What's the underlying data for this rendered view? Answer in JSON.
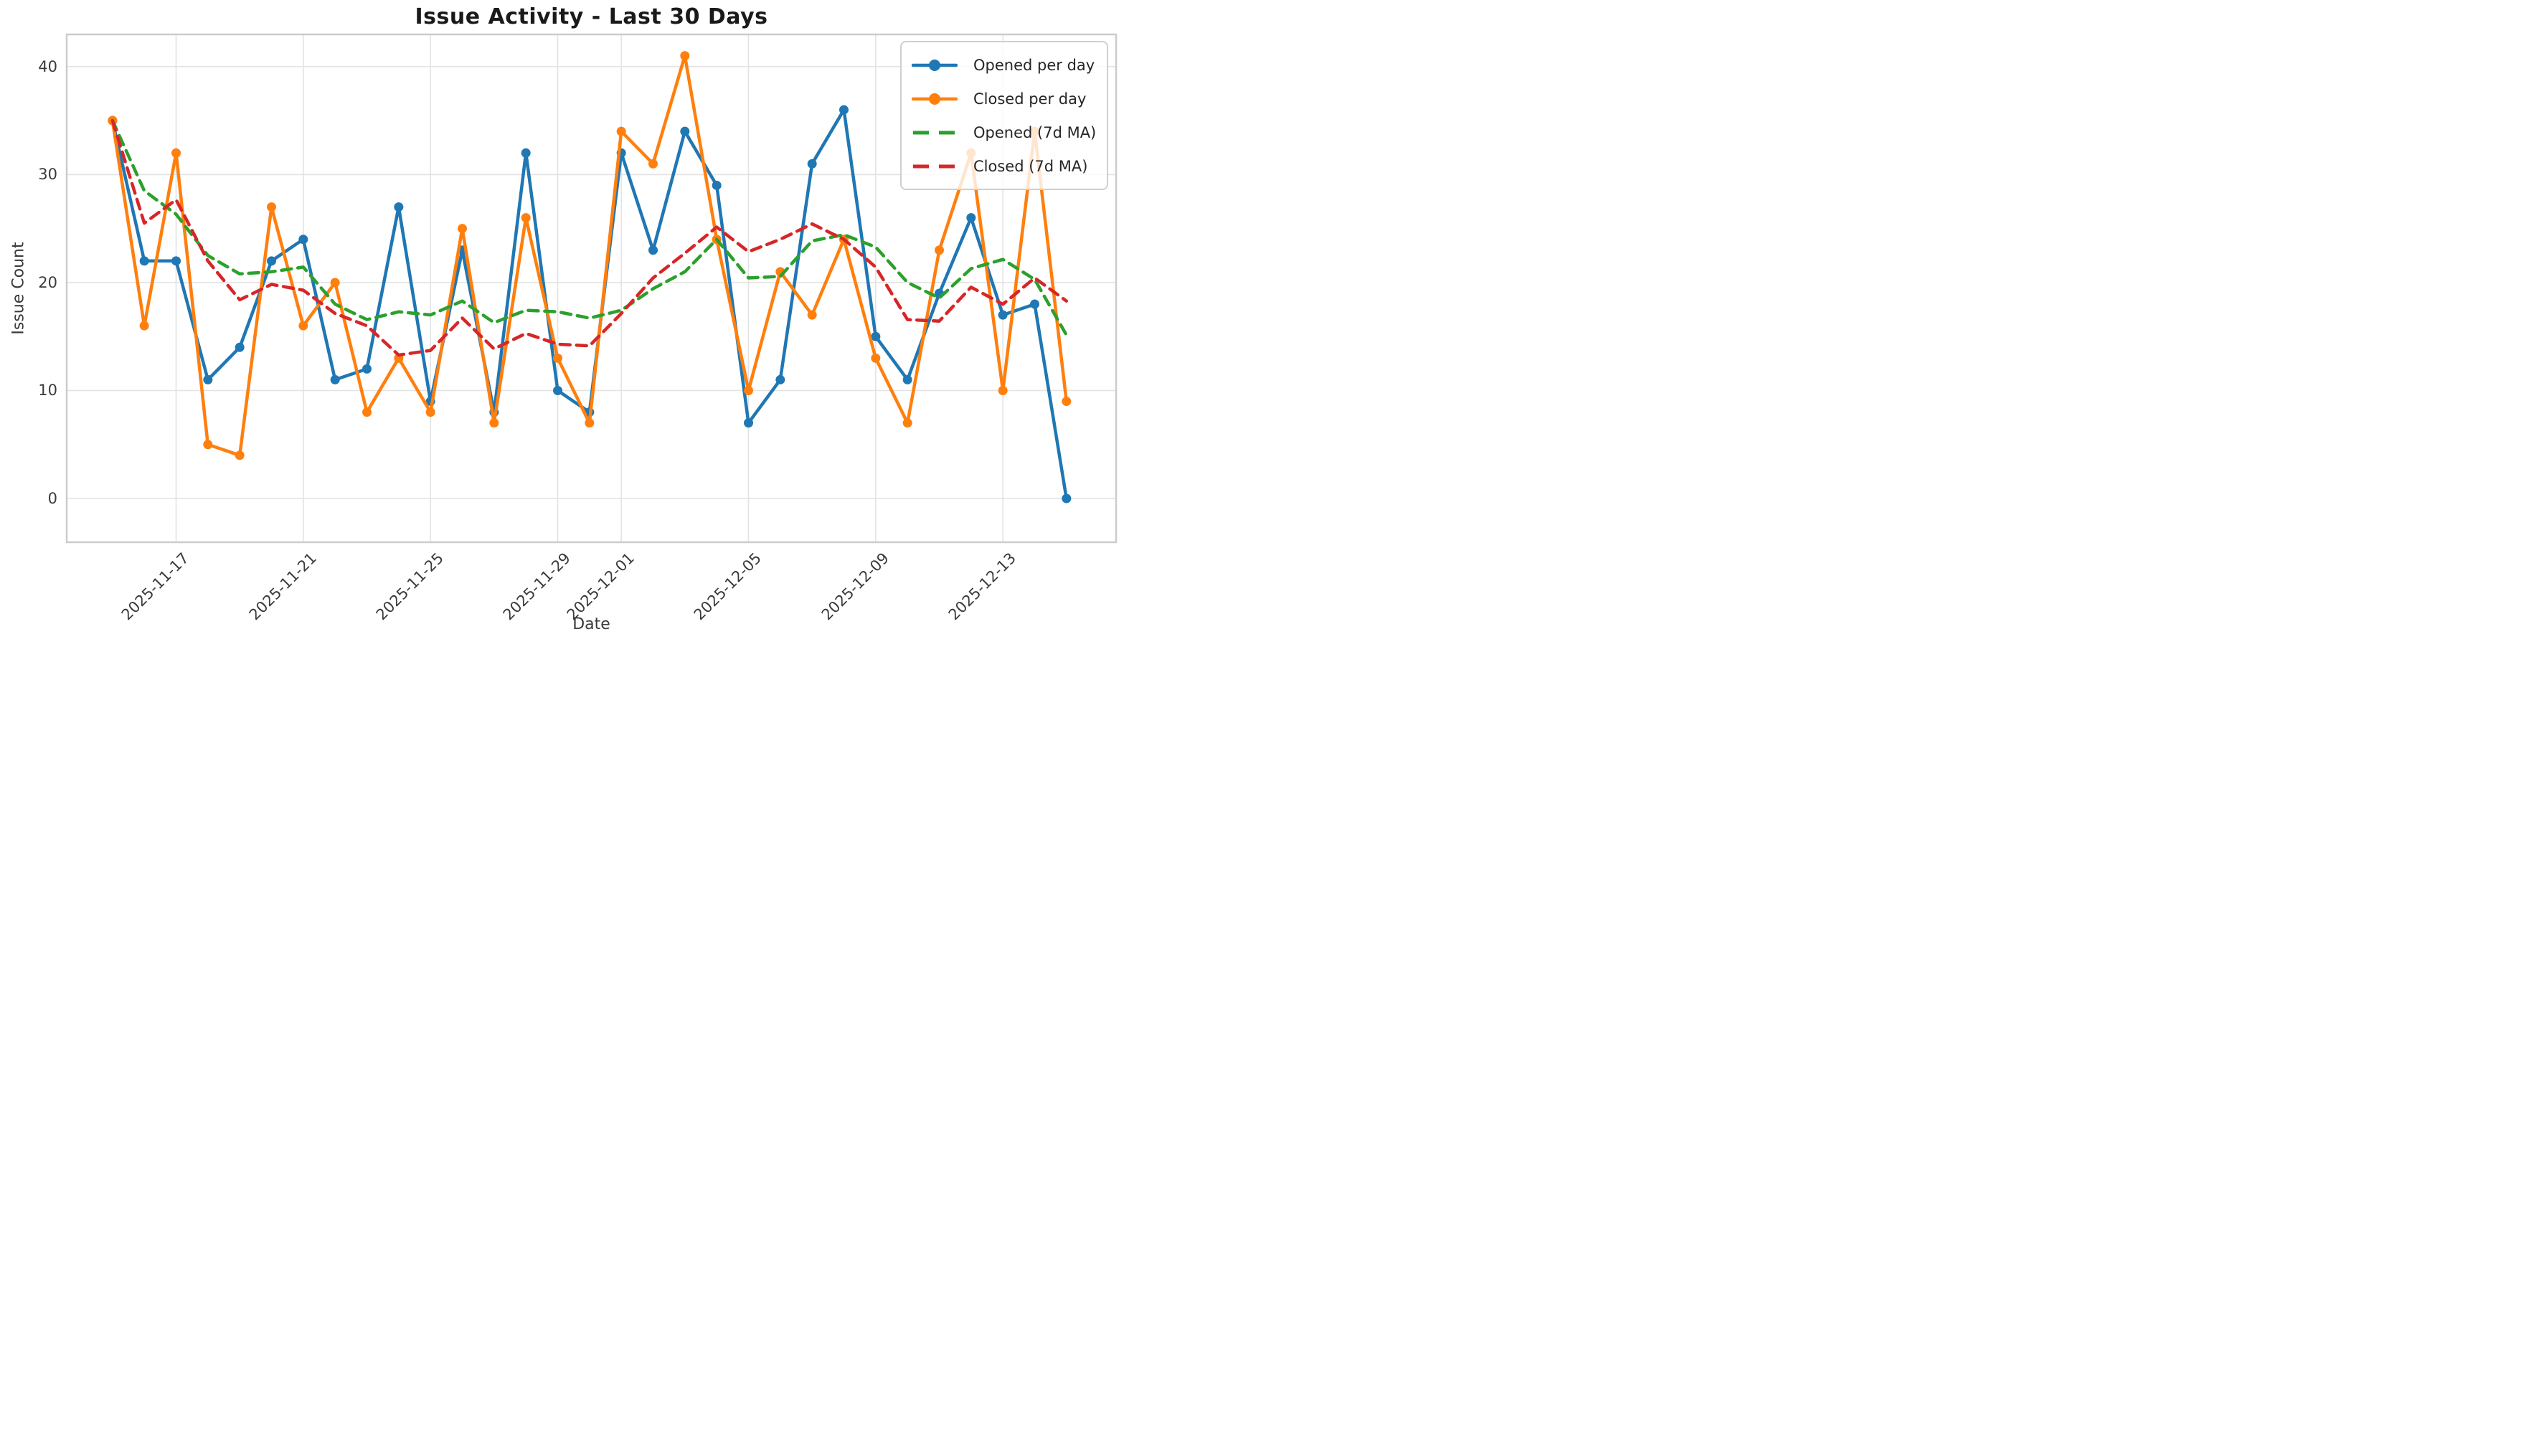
{
  "figure_title": "Issue Activity - Last 30 Days",
  "chart_data": {
    "type": "line",
    "title": "Issue Activity - Last 30 Days",
    "xlabel": "Date",
    "ylabel": "Issue Count",
    "grid": true,
    "legend_position": "upper right",
    "ylim": [
      -4.05,
      42.98
    ],
    "xlim_day_index": [
      -1.44,
      31.56
    ],
    "yticks": [
      0,
      10,
      20,
      30,
      40
    ],
    "xticks": [
      {
        "label": "2025-11-17",
        "day_index": 2
      },
      {
        "label": "2025-11-21",
        "day_index": 6
      },
      {
        "label": "2025-11-25",
        "day_index": 10
      },
      {
        "label": "2025-11-29",
        "day_index": 14
      },
      {
        "label": "2025-12-01",
        "day_index": 16
      },
      {
        "label": "2025-12-05",
        "day_index": 20
      },
      {
        "label": "2025-12-09",
        "day_index": 24
      },
      {
        "label": "2025-12-13",
        "day_index": 28
      }
    ],
    "dates": [
      "2025-11-15",
      "2025-11-16",
      "2025-11-17",
      "2025-11-18",
      "2025-11-19",
      "2025-11-20",
      "2025-11-21",
      "2025-11-22",
      "2025-11-23",
      "2025-11-24",
      "2025-11-25",
      "2025-11-26",
      "2025-11-27",
      "2025-11-28",
      "2025-11-29",
      "2025-11-30",
      "2025-12-01",
      "2025-12-02",
      "2025-12-03",
      "2025-12-04",
      "2025-12-05",
      "2025-12-06",
      "2025-12-07",
      "2025-12-08",
      "2025-12-09",
      "2025-12-10",
      "2025-12-11",
      "2025-12-12",
      "2025-12-13",
      "2025-12-14",
      "2025-12-15"
    ],
    "series": [
      {
        "name": "Opened per day",
        "color": "#1f77b4",
        "line_style": "solid",
        "marker": "circle",
        "values": [
          35,
          22,
          22,
          11,
          14,
          22,
          24,
          11,
          12,
          27,
          9,
          23,
          8,
          32,
          10,
          8,
          32,
          23,
          34,
          29,
          7,
          11,
          31,
          36,
          15,
          11,
          19,
          26,
          17,
          18,
          0
        ]
      },
      {
        "name": "Closed per day",
        "color": "#ff7f0e",
        "line_style": "solid",
        "marker": "circle",
        "values": [
          35,
          16,
          32,
          5,
          4,
          27,
          16,
          20,
          8,
          13,
          8,
          25,
          7,
          26,
          13,
          7,
          34,
          31,
          41,
          24,
          10,
          21,
          17,
          24,
          13,
          7,
          23,
          32,
          10,
          34,
          9
        ]
      },
      {
        "name": "Opened (7d MA)",
        "color": "#2ca02c",
        "line_style": "dashed",
        "marker": "none",
        "values": [
          35,
          28.5,
          26.33,
          22.5,
          20.8,
          21,
          21.43,
          18,
          16.57,
          17.29,
          17,
          18.29,
          16.29,
          17.43,
          17.29,
          16.71,
          17.43,
          19.43,
          21,
          24,
          20.43,
          20.57,
          23.86,
          24.43,
          23.29,
          20,
          18.57,
          21.29,
          22.14,
          20.29,
          15.14
        ]
      },
      {
        "name": "Closed (7d MA)",
        "color": "#d62728",
        "line_style": "dashed",
        "marker": "none",
        "values": [
          35,
          25.5,
          27.67,
          22,
          18.4,
          19.83,
          19.29,
          17.14,
          16,
          13.29,
          13.71,
          16.71,
          13.86,
          15.29,
          14.29,
          14.14,
          17.14,
          20.43,
          22.71,
          25.14,
          22.86,
          24,
          25.43,
          24,
          21.43,
          16.57,
          16.43,
          19.57,
          18,
          20.43,
          18.29
        ]
      }
    ],
    "style": {
      "grid_color": "#e3e3e3",
      "spine_color": "#cccccc",
      "tick_color": "#3a3a3a",
      "title_color": "#1a1a1a",
      "legend_text_color": "#262626",
      "background": "#ffffff",
      "line_width": 4.5,
      "marker_radius": 6.5,
      "dash_pattern": "14 9"
    }
  },
  "legend": {
    "items": [
      {
        "label": "Opened per day",
        "color": "#1f77b4",
        "style": "solid-marker"
      },
      {
        "label": "Closed per day",
        "color": "#ff7f0e",
        "style": "solid-marker"
      },
      {
        "label": "Opened (7d MA)",
        "color": "#2ca02c",
        "style": "dashed"
      },
      {
        "label": "Closed (7d MA)",
        "color": "#d62728",
        "style": "dashed"
      }
    ]
  }
}
